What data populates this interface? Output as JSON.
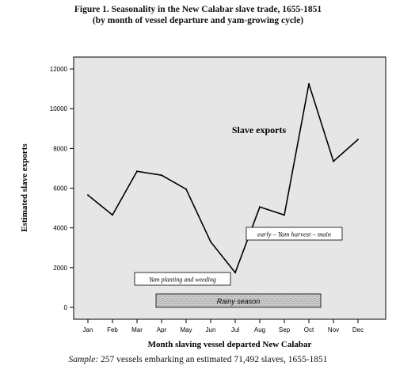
{
  "figure": {
    "title_line1": "Figure 1.  Seasonality in the New Calabar slave trade, 1655-1851",
    "title_line2": "(by month of vessel departure and yam-growing cycle)",
    "caption_prefix": "Sample:",
    "caption_text": " 257 vessels embarking an estimated 71,492 slaves, 1655-1851"
  },
  "annotations": {
    "series_label": "Slave exports",
    "yam_harvest": "early – Yam harvest – main",
    "yam_planting": "Yam planting and weeding",
    "rainy_season": "Rainy season"
  },
  "chart_data": {
    "type": "line",
    "xlabel": "Month slaving vessel departed New Calabar",
    "ylabel": "Estimated slave exports",
    "categories": [
      "Jan",
      "Feb",
      "Mar",
      "Apr",
      "May",
      "Jun",
      "Jul",
      "Aug",
      "Sep",
      "Oct",
      "Nov",
      "Dec"
    ],
    "series": [
      {
        "name": "Slave exports",
        "values": [
          5650,
          4650,
          6850,
          6650,
          5950,
          3300,
          1750,
          5050,
          4650,
          11250,
          7350,
          8450
        ]
      }
    ],
    "yticks": [
      0,
      2000,
      4000,
      6000,
      8000,
      10000,
      12000
    ],
    "ylim": [
      -600,
      12600
    ],
    "grid": false,
    "legend": "none",
    "colors": {
      "line": "#000000",
      "plot_bg": "#e6e6e6",
      "rain_fill": "#cfcfcf"
    }
  }
}
